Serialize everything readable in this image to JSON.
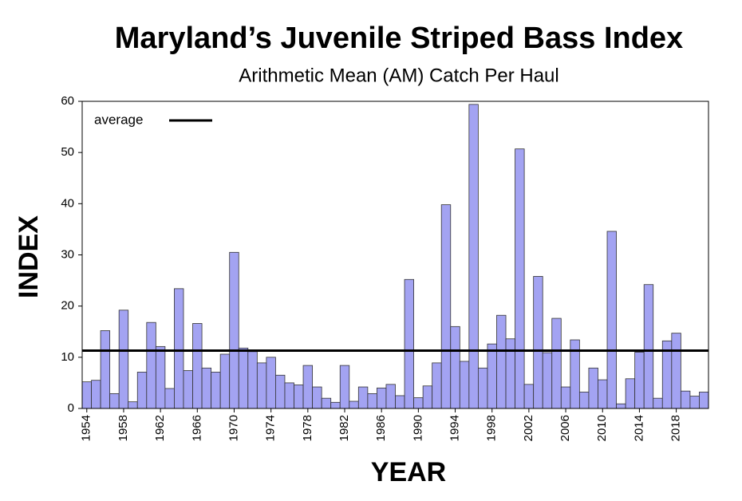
{
  "chart_data": {
    "type": "bar",
    "title": "Maryland’s Juvenile Striped Bass Index",
    "subtitle": "Arithmetic Mean (AM) Catch Per Haul",
    "x_label": "YEAR",
    "y_label": "INDEX",
    "x": [
      1954,
      1955,
      1956,
      1957,
      1958,
      1959,
      1960,
      1961,
      1962,
      1963,
      1964,
      1965,
      1966,
      1967,
      1968,
      1969,
      1970,
      1971,
      1972,
      1973,
      1974,
      1975,
      1976,
      1977,
      1978,
      1979,
      1980,
      1981,
      1982,
      1983,
      1984,
      1985,
      1986,
      1987,
      1988,
      1989,
      1990,
      1991,
      1992,
      1993,
      1994,
      1995,
      1996,
      1997,
      1998,
      1999,
      2000,
      2001,
      2002,
      2003,
      2004,
      2005,
      2006,
      2007,
      2008,
      2009,
      2010,
      2011,
      2012,
      2013,
      2014,
      2015,
      2016,
      2017,
      2018,
      2019,
      2020,
      2021
    ],
    "values": [
      5.2,
      5.5,
      15.2,
      2.9,
      19.2,
      1.3,
      7.1,
      16.8,
      12.1,
      3.9,
      23.4,
      7.4,
      16.6,
      7.9,
      7.1,
      10.6,
      30.5,
      11.8,
      11.1,
      8.9,
      10.0,
      6.5,
      5.0,
      4.6,
      8.4,
      4.2,
      2.0,
      1.2,
      8.4,
      1.4,
      4.2,
      2.9,
      4.0,
      4.7,
      2.5,
      25.2,
      2.1,
      4.4,
      8.9,
      39.8,
      16.0,
      9.2,
      59.4,
      7.9,
      12.6,
      18.2,
      13.6,
      50.7,
      4.7,
      25.8,
      10.9,
      17.6,
      4.2,
      13.4,
      3.2,
      7.9,
      5.6,
      34.6,
      0.9,
      5.8,
      11.0,
      24.2,
      2.0,
      13.2,
      14.7,
      3.4,
      2.4,
      3.2
    ],
    "color": "#a3a3f2",
    "average": {
      "name": "average",
      "value": 11.3,
      "color": "#000000"
    },
    "xlim": [
      1953.5,
      2021.5
    ],
    "xticks": [
      1954,
      1958,
      1962,
      1966,
      1970,
      1974,
      1978,
      1982,
      1986,
      1990,
      1994,
      1998,
      2002,
      2006,
      2010,
      2014,
      2018
    ],
    "ylim": [
      0,
      60
    ],
    "yticks": [
      0,
      10,
      20,
      30,
      40,
      50,
      60
    ]
  }
}
